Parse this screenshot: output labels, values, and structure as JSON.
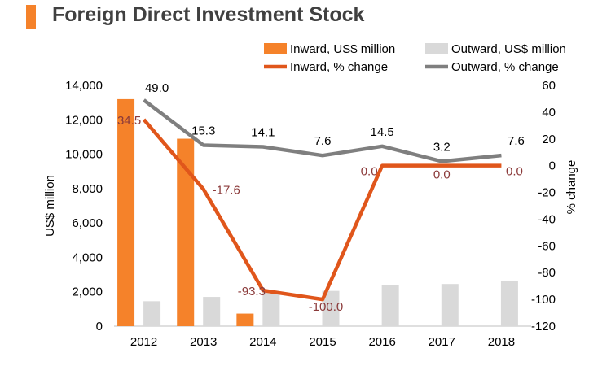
{
  "title": "Foreign Direct Investment Stock",
  "colors": {
    "title_bar": "#f5822a",
    "inward_bar": "#f5822a",
    "outward_bar": "#d9d9d9",
    "inward_line": "#e0561b",
    "outward_line": "#7f7f7f",
    "inward_label": "#8b3a3a",
    "text": "#000000",
    "axis": "#bfbfbf"
  },
  "chart_data": {
    "type": "bar",
    "categories": [
      "2012",
      "2013",
      "2014",
      "2015",
      "2016",
      "2017",
      "2018"
    ],
    "ylabel": "US$ million",
    "y2label": "% change",
    "ylim": [
      0,
      14000
    ],
    "y2lim": [
      -120,
      60
    ],
    "yticks": [
      "0",
      "2,000",
      "4,000",
      "6,000",
      "8,000",
      "10,000",
      "12,000",
      "14,000"
    ],
    "y2ticks": [
      "-120",
      "-100",
      "-80",
      "-60",
      "-40",
      "-20",
      "0",
      "20",
      "40",
      "60"
    ],
    "series": [
      {
        "name": "Inward, US$ million",
        "kind": "bar",
        "axis": "left",
        "values": [
          13200,
          10900,
          730,
          0,
          0,
          0,
          0
        ]
      },
      {
        "name": "Outward, US$ million",
        "kind": "bar",
        "axis": "left",
        "values": [
          1450,
          1700,
          1950,
          2050,
          2400,
          2450,
          2650
        ]
      },
      {
        "name": "Inward, % change",
        "kind": "line",
        "axis": "right",
        "values": [
          34.5,
          -17.6,
          -93.3,
          -100.0,
          0.0,
          0.0,
          0.0
        ],
        "labels": [
          "34.5",
          "-17.6",
          "-93.3",
          "-100.0",
          "0.0",
          "0.0",
          "0.0"
        ]
      },
      {
        "name": "Outward, % change",
        "kind": "line",
        "axis": "right",
        "values": [
          49.0,
          15.3,
          14.1,
          7.6,
          14.5,
          3.2,
          7.6
        ],
        "labels": [
          "49.0",
          "15.3",
          "14.1",
          "7.6",
          "14.5",
          "3.2",
          "7.6"
        ]
      }
    ],
    "legend_position": "top-right",
    "grid": false
  }
}
